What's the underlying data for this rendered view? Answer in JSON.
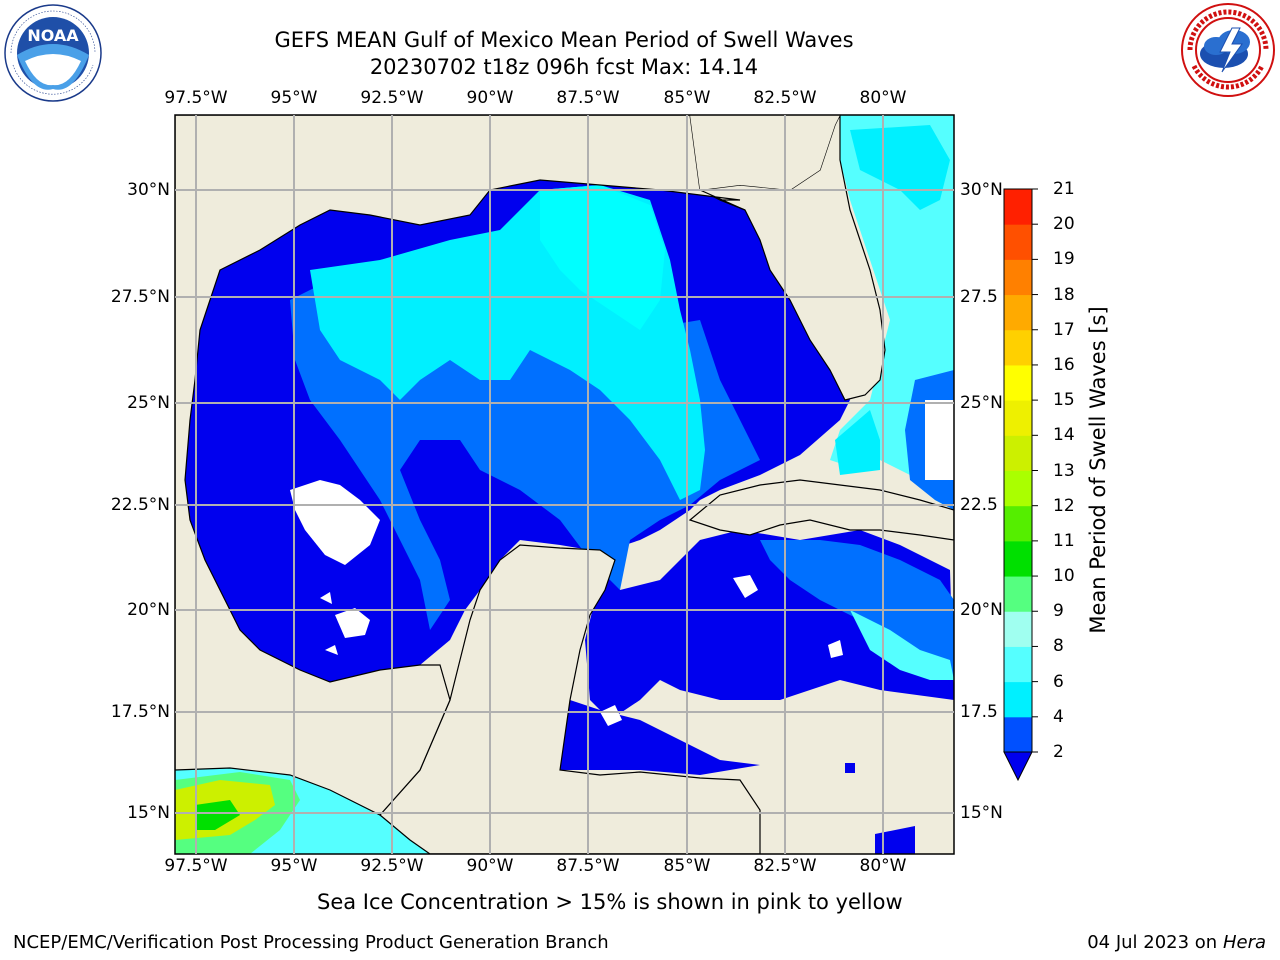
{
  "header": {
    "title_line1": "GEFS MEAN Gulf of Mexico Mean Period of Swell Waves",
    "title_line2": "20230702 t18z 096h fcst   Max: 14.14"
  },
  "logos": {
    "left": "noaa-logo",
    "right": "national-weather-service-logo"
  },
  "map": {
    "lon_labels": [
      "97.5°W",
      "95°W",
      "92.5°W",
      "90°W",
      "87.5°W",
      "85°W",
      "82.5°W",
      "80°W"
    ],
    "lat_labels_left": [
      "30°N",
      "27.5°N",
      "25°N",
      "22.5°N",
      "20°N",
      "17.5°N",
      "15°N"
    ],
    "lat_labels_right": [
      "30°N",
      "27.5",
      "25°N",
      "22.5",
      "20°N",
      "17.5",
      "15°N"
    ],
    "land_color": "#efecdc",
    "grid_color": "#b0b0b0"
  },
  "colorbar": {
    "label": "Mean Period of Swell Waves [s]",
    "ticks": [
      "2",
      "4",
      "6",
      "8",
      "9",
      "10",
      "11",
      "12",
      "13",
      "14",
      "15",
      "16",
      "17",
      "18",
      "19",
      "20",
      "21"
    ],
    "colors": [
      "#0050ff",
      "#00c8ff",
      "#00f0ff",
      "#55ffff",
      "#a0fff0",
      "#55ff80",
      "#00e000",
      "#55ee00",
      "#aaff00",
      "#ccf000",
      "#eef000",
      "#ffff00",
      "#ffd000",
      "#ffaa00",
      "#ff8000",
      "#ff5000",
      "#ff2000",
      "#ff0000"
    ],
    "under_color": "#0000ee"
  },
  "caption": "Sea Ice Concentration > 15% is shown in pink to yellow",
  "footer": {
    "left": "NCEP/EMC/Verification Post Processing Product Generation Branch",
    "right_prefix": "04 Jul 2023 on ",
    "right_machine": "Hera"
  }
}
